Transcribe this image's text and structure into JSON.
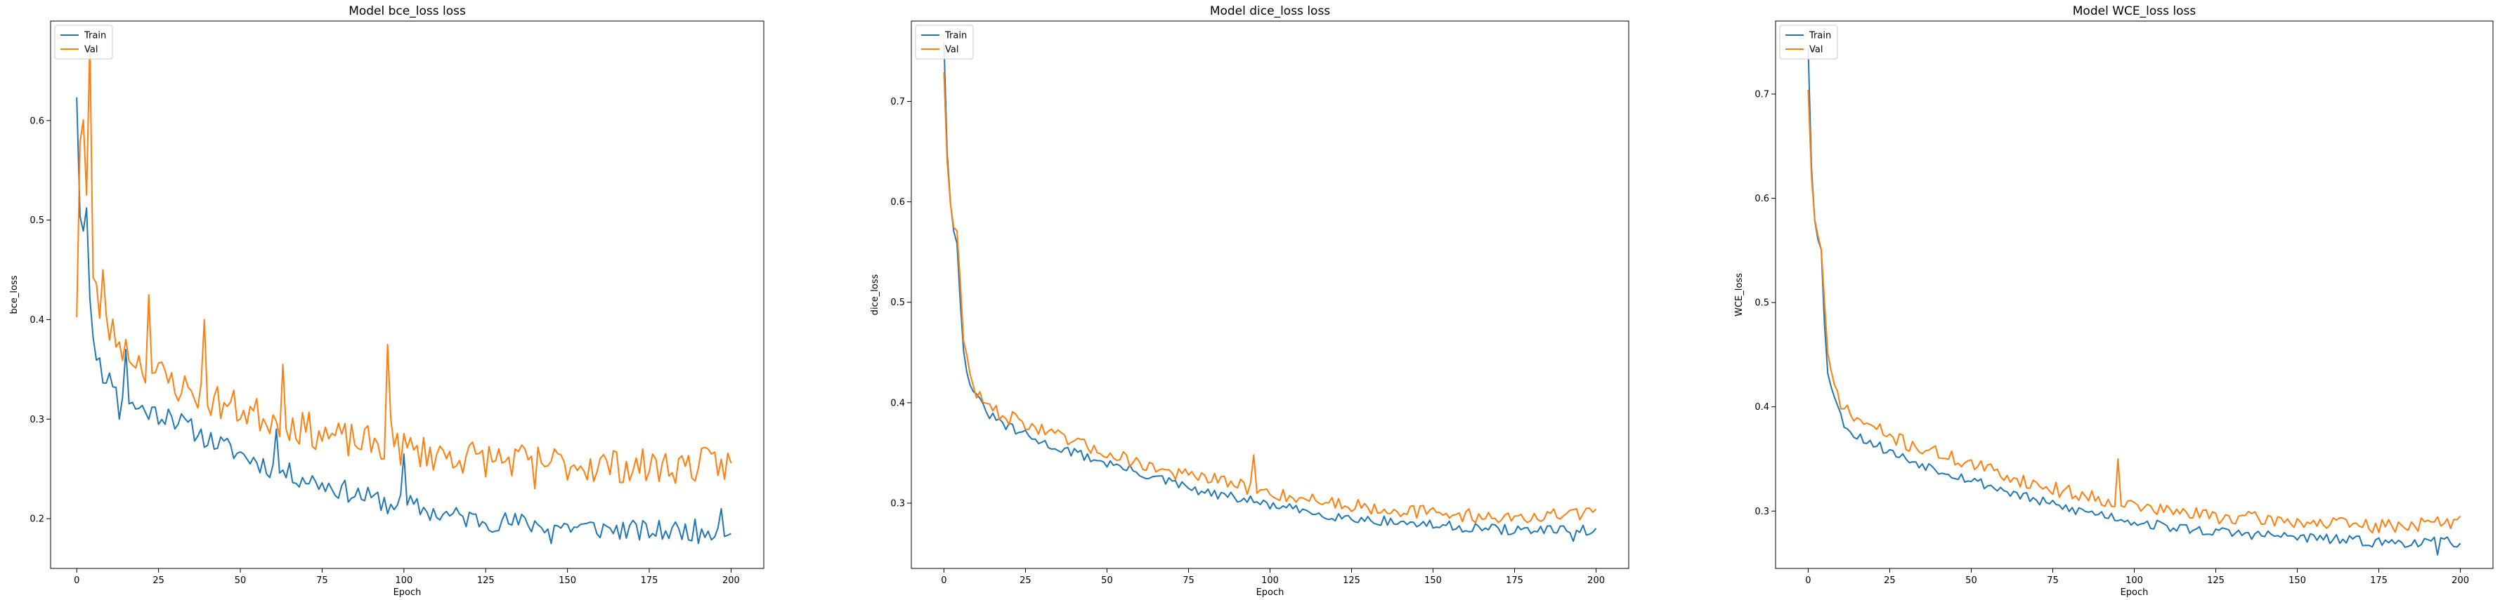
{
  "figure": {
    "colors": {
      "train": "#1f77b4",
      "val": "#ff7f0e"
    }
  },
  "chart_data": [
    {
      "type": "line",
      "title": "Model bce_loss loss",
      "xlabel": "Epoch",
      "ylabel": "bce_loss",
      "xlim": [
        -8,
        210
      ],
      "ylim": [
        0.15,
        0.7
      ],
      "xticks": [
        0,
        25,
        50,
        75,
        100,
        125,
        150,
        175,
        200
      ],
      "yticks": [
        0.2,
        0.3,
        0.4,
        0.5,
        0.6
      ],
      "ytick_labels": [
        "0.2",
        "0.3",
        "0.4",
        "0.5",
        "0.6"
      ],
      "legend_position": "upper left",
      "series": [
        {
          "name": "Train",
          "color": "#1f77b4",
          "knots": [
            [
              0,
              0.625
            ],
            [
              1,
              0.505
            ],
            [
              2,
              0.49
            ],
            [
              3,
              0.515
            ],
            [
              4,
              0.42
            ],
            [
              5,
              0.38
            ],
            [
              8,
              0.345
            ],
            [
              12,
              0.335
            ],
            [
              16,
              0.315
            ],
            [
              20,
              0.31
            ],
            [
              25,
              0.305
            ],
            [
              30,
              0.3
            ],
            [
              40,
              0.28
            ],
            [
              50,
              0.265
            ],
            [
              60,
              0.25
            ],
            [
              70,
              0.24
            ],
            [
              80,
              0.23
            ],
            [
              90,
              0.22
            ],
            [
              100,
              0.215
            ],
            [
              110,
              0.205
            ],
            [
              125,
              0.198
            ],
            [
              150,
              0.192
            ],
            [
              175,
              0.187
            ],
            [
              200,
              0.19
            ]
          ],
          "noise": 0.011,
          "seed": 11,
          "spikes": [
            [
              13,
              0.3
            ],
            [
              15,
              0.37
            ],
            [
              28,
              0.31
            ],
            [
              61,
              0.29
            ],
            [
              95,
              0.205
            ],
            [
              100,
              0.265
            ],
            [
              145,
              0.175
            ],
            [
              190,
              0.175
            ],
            [
              197,
              0.21
            ]
          ]
        },
        {
          "name": "Val",
          "color": "#ff7f0e",
          "knots": [
            [
              0,
              0.405
            ],
            [
              1,
              0.58
            ],
            [
              2,
              0.6
            ],
            [
              3,
              0.525
            ],
            [
              4,
              0.66
            ],
            [
              5,
              0.44
            ],
            [
              7,
              0.41
            ],
            [
              10,
              0.39
            ],
            [
              15,
              0.37
            ],
            [
              20,
              0.355
            ],
            [
              25,
              0.345
            ],
            [
              30,
              0.335
            ],
            [
              40,
              0.32
            ],
            [
              50,
              0.31
            ],
            [
              60,
              0.3
            ],
            [
              70,
              0.29
            ],
            [
              80,
              0.28
            ],
            [
              90,
              0.275
            ],
            [
              100,
              0.27
            ],
            [
              110,
              0.265
            ],
            [
              125,
              0.26
            ],
            [
              150,
              0.255
            ],
            [
              175,
              0.252
            ],
            [
              200,
              0.255
            ]
          ],
          "noise": 0.018,
          "seed": 23,
          "spikes": [
            [
              4,
              0.68
            ],
            [
              8,
              0.45
            ],
            [
              22,
              0.425
            ],
            [
              39,
              0.4
            ],
            [
              63,
              0.355
            ],
            [
              95,
              0.375
            ],
            [
              96,
              0.3
            ],
            [
              140,
              0.23
            ]
          ]
        }
      ]
    },
    {
      "type": "line",
      "title": "Model dice_loss loss",
      "xlabel": "Epoch",
      "ylabel": "dice_loss",
      "xlim": [
        -10,
        210
      ],
      "ylim": [
        0.235,
        0.78
      ],
      "xticks": [
        0,
        25,
        50,
        75,
        100,
        125,
        150,
        175,
        200
      ],
      "yticks": [
        0.3,
        0.4,
        0.5,
        0.6,
        0.7
      ],
      "ytick_labels": [
        "0.3",
        "0.4",
        "0.5",
        "0.6",
        "0.7"
      ],
      "legend_position": "upper left",
      "series": [
        {
          "name": "Train",
          "color": "#1f77b4",
          "knots": [
            [
              0,
              0.76
            ],
            [
              1,
              0.65
            ],
            [
              2,
              0.6
            ],
            [
              3,
              0.57
            ],
            [
              4,
              0.56
            ],
            [
              5,
              0.5
            ],
            [
              6,
              0.45
            ],
            [
              8,
              0.42
            ],
            [
              10,
              0.405
            ],
            [
              12,
              0.395
            ],
            [
              15,
              0.385
            ],
            [
              20,
              0.375
            ],
            [
              25,
              0.368
            ],
            [
              30,
              0.36
            ],
            [
              40,
              0.35
            ],
            [
              50,
              0.34
            ],
            [
              60,
              0.33
            ],
            [
              70,
              0.32
            ],
            [
              80,
              0.31
            ],
            [
              90,
              0.305
            ],
            [
              100,
              0.298
            ],
            [
              110,
              0.292
            ],
            [
              125,
              0.285
            ],
            [
              150,
              0.278
            ],
            [
              175,
              0.273
            ],
            [
              200,
              0.272
            ]
          ],
          "noise": 0.005,
          "seed": 31,
          "spikes": [
            [
              193,
              0.262
            ],
            [
              196,
              0.278
            ]
          ]
        },
        {
          "name": "Val",
          "color": "#ff7f0e",
          "knots": [
            [
              0,
              0.73
            ],
            [
              1,
              0.64
            ],
            [
              2,
              0.6
            ],
            [
              3,
              0.575
            ],
            [
              4,
              0.57
            ],
            [
              5,
              0.52
            ],
            [
              6,
              0.46
            ],
            [
              8,
              0.43
            ],
            [
              10,
              0.41
            ],
            [
              12,
              0.4
            ],
            [
              15,
              0.393
            ],
            [
              20,
              0.385
            ],
            [
              25,
              0.38
            ],
            [
              30,
              0.372
            ],
            [
              40,
              0.36
            ],
            [
              50,
              0.35
            ],
            [
              60,
              0.34
            ],
            [
              70,
              0.33
            ],
            [
              80,
              0.325
            ],
            [
              90,
              0.318
            ],
            [
              100,
              0.31
            ],
            [
              110,
              0.305
            ],
            [
              125,
              0.298
            ],
            [
              150,
              0.29
            ],
            [
              175,
              0.285
            ],
            [
              200,
              0.29
            ]
          ],
          "noise": 0.007,
          "seed": 47,
          "spikes": [
            [
              95,
              0.348
            ],
            [
              96,
              0.31
            ],
            [
              198,
              0.295
            ]
          ]
        }
      ]
    },
    {
      "type": "line",
      "title": "Model WCE_loss loss",
      "xlabel": "Epoch",
      "ylabel": "WCE_loss",
      "xlim": [
        -10,
        210
      ],
      "ylim": [
        0.245,
        0.77
      ],
      "xticks": [
        0,
        25,
        50,
        75,
        100,
        125,
        150,
        175,
        200
      ],
      "yticks": [
        0.3,
        0.4,
        0.5,
        0.6,
        0.7
      ],
      "ytick_labels": [
        "0.3",
        "0.4",
        "0.5",
        "0.6",
        "0.7"
      ],
      "legend_position": "upper left",
      "series": [
        {
          "name": "Train",
          "color": "#1f77b4",
          "knots": [
            [
              0,
              0.745
            ],
            [
              1,
              0.63
            ],
            [
              2,
              0.58
            ],
            [
              3,
              0.56
            ],
            [
              4,
              0.55
            ],
            [
              5,
              0.48
            ],
            [
              6,
              0.435
            ],
            [
              8,
              0.41
            ],
            [
              10,
              0.39
            ],
            [
              12,
              0.38
            ],
            [
              15,
              0.372
            ],
            [
              20,
              0.365
            ],
            [
              25,
              0.357
            ],
            [
              30,
              0.35
            ],
            [
              40,
              0.34
            ],
            [
              50,
              0.33
            ],
            [
              60,
              0.32
            ],
            [
              70,
              0.31
            ],
            [
              80,
              0.302
            ],
            [
              90,
              0.297
            ],
            [
              100,
              0.29
            ],
            [
              110,
              0.285
            ],
            [
              125,
              0.28
            ],
            [
              150,
              0.275
            ],
            [
              175,
              0.27
            ],
            [
              200,
              0.27
            ]
          ],
          "noise": 0.005,
          "seed": 53,
          "spikes": [
            [
              193,
              0.258
            ],
            [
              196,
              0.275
            ]
          ]
        },
        {
          "name": "Val",
          "color": "#ff7f0e",
          "knots": [
            [
              0,
              0.705
            ],
            [
              1,
              0.62
            ],
            [
              2,
              0.58
            ],
            [
              3,
              0.565
            ],
            [
              4,
              0.55
            ],
            [
              5,
              0.5
            ],
            [
              6,
              0.445
            ],
            [
              8,
              0.42
            ],
            [
              10,
              0.405
            ],
            [
              12,
              0.395
            ],
            [
              15,
              0.388
            ],
            [
              20,
              0.38
            ],
            [
              25,
              0.372
            ],
            [
              30,
              0.365
            ],
            [
              40,
              0.355
            ],
            [
              50,
              0.345
            ],
            [
              60,
              0.335
            ],
            [
              70,
              0.325
            ],
            [
              80,
              0.318
            ],
            [
              90,
              0.312
            ],
            [
              100,
              0.305
            ],
            [
              110,
              0.3
            ],
            [
              125,
              0.295
            ],
            [
              150,
              0.29
            ],
            [
              175,
              0.285
            ],
            [
              200,
              0.29
            ]
          ],
          "noise": 0.007,
          "seed": 71,
          "spikes": [
            [
              95,
              0.35
            ],
            [
              96,
              0.305
            ],
            [
              198,
              0.292
            ]
          ]
        }
      ]
    }
  ]
}
